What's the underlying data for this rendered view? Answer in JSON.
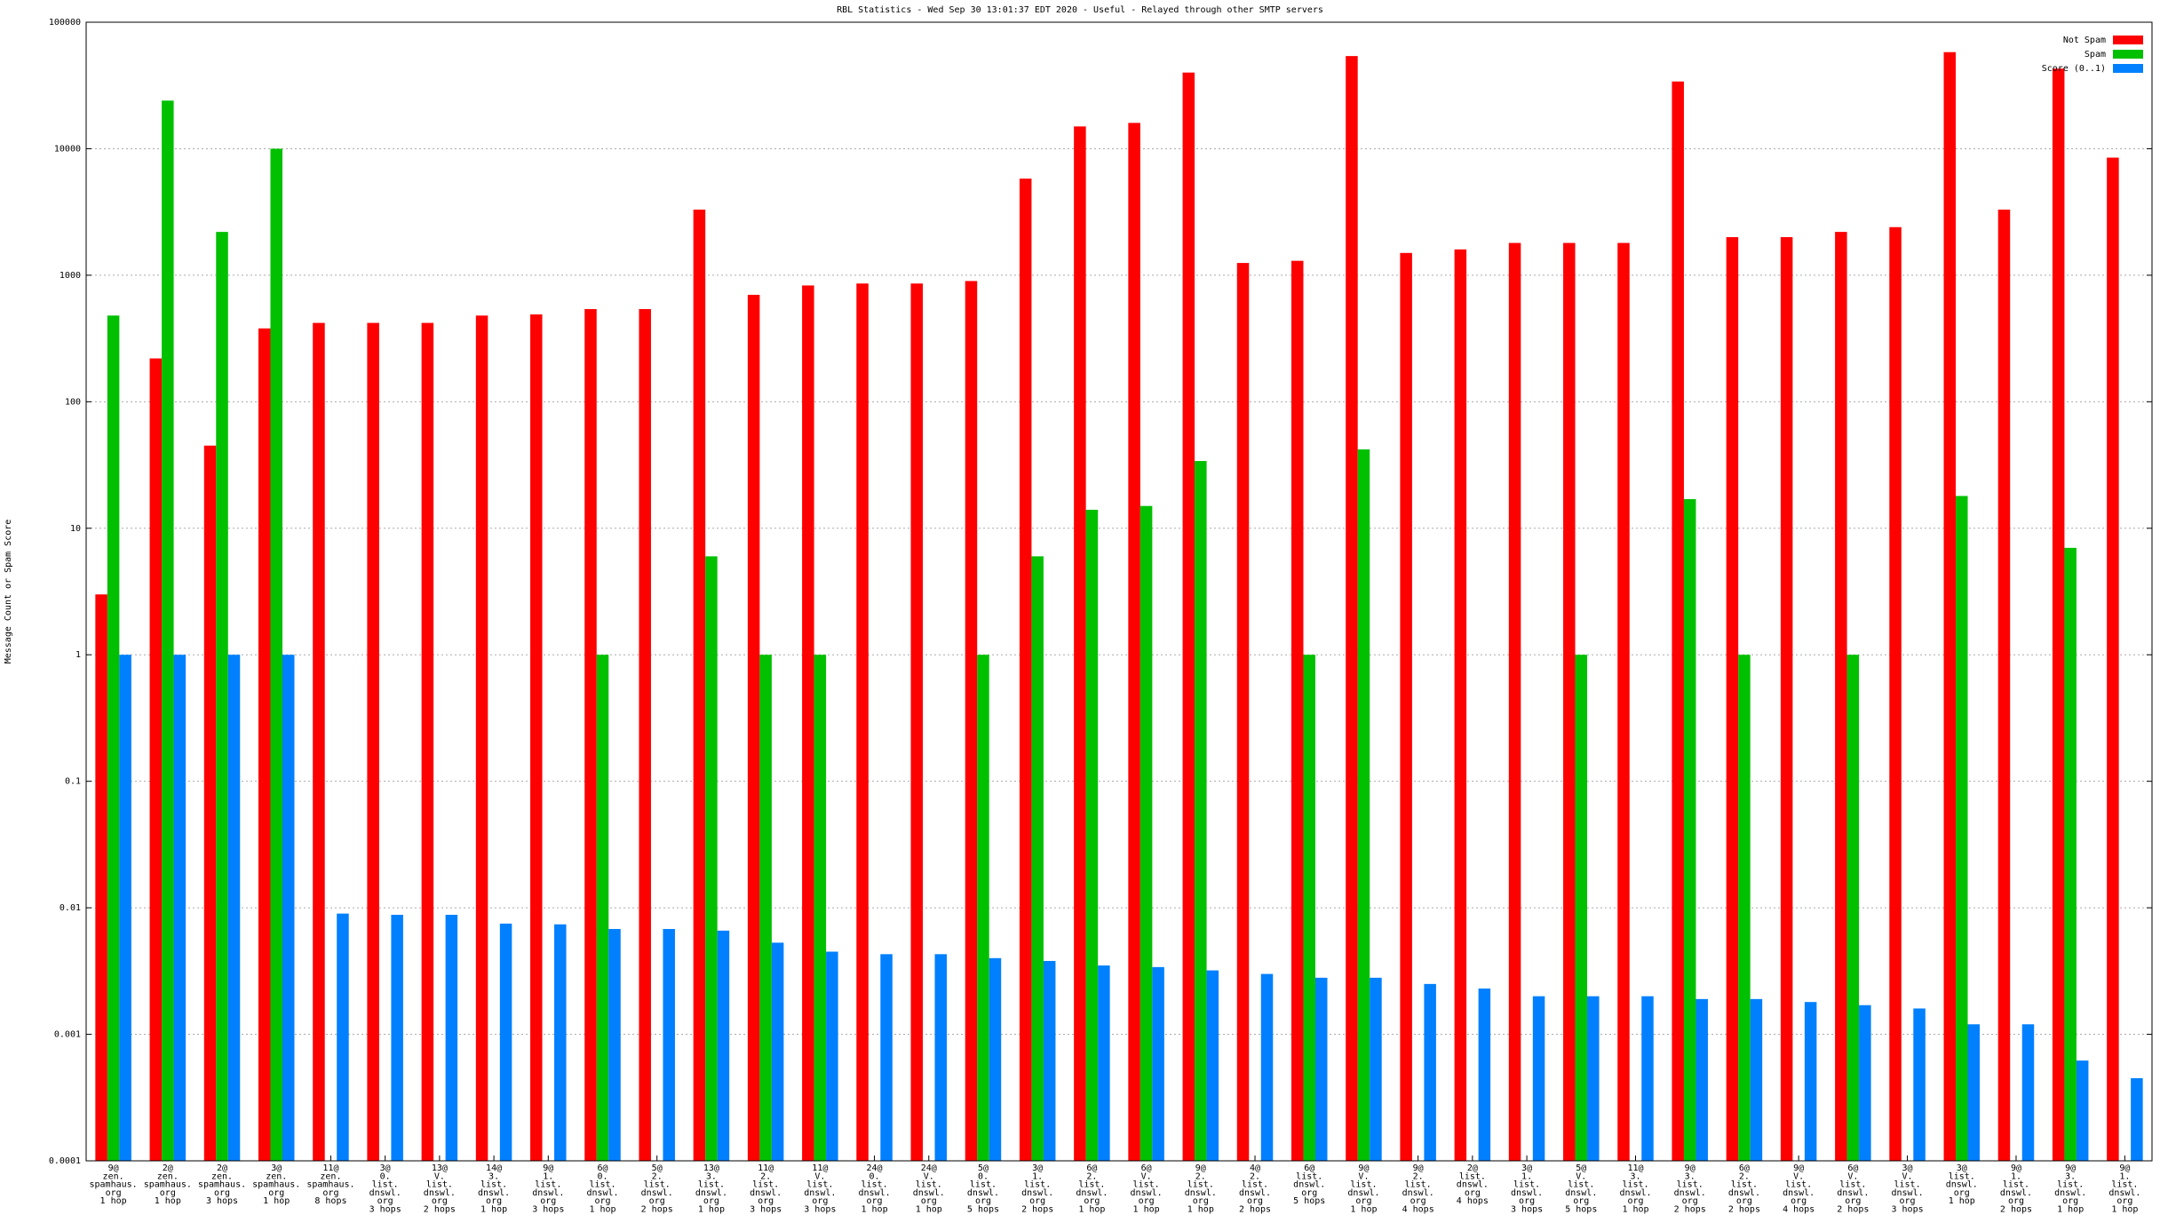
{
  "chart_data": {
    "type": "bar",
    "title": "RBL Statistics - Wed Sep 30 13:01:37 EDT 2020 - Useful - Relayed through other SMTP servers",
    "y_label": "Message Count or Spam Score",
    "log_y": true,
    "grid": true,
    "legend": "upper right",
    "ylim": [
      0.0001,
      100000
    ],
    "yticks": [
      0.0001,
      0.001,
      0.01,
      0.1,
      1,
      10,
      100,
      1000,
      10000,
      100000
    ],
    "categories": [
      [
        "9@",
        "zen.",
        "spamhaus.",
        "org",
        "1 hop"
      ],
      [
        "2@",
        "zen.",
        "spamhaus.",
        "org",
        "1 hop"
      ],
      [
        "2@",
        "zen.",
        "spamhaus.",
        "org",
        "3 hops"
      ],
      [
        "3@",
        "zen.",
        "spamhaus.",
        "org",
        "1 hop"
      ],
      [
        "11@",
        "zen.",
        "spamhaus.",
        "org",
        "8 hops"
      ],
      [
        "3@",
        "0.",
        "list.",
        "dnswl.",
        "org",
        "3 hops"
      ],
      [
        "13@",
        "V.",
        "list.",
        "dnswl.",
        "org",
        "2 hops"
      ],
      [
        "14@",
        "3.",
        "list.",
        "dnswl.",
        "org",
        "1 hop"
      ],
      [
        "9@",
        "1.",
        "list.",
        "dnswl.",
        "org",
        "3 hops"
      ],
      [
        "6@",
        "0.",
        "list.",
        "dnswl.",
        "org",
        "1 hop"
      ],
      [
        "5@",
        "2.",
        "list.",
        "dnswl.",
        "org",
        "2 hops"
      ],
      [
        "13@",
        "3.",
        "list.",
        "dnswl.",
        "org",
        "1 hop"
      ],
      [
        "11@",
        "2.",
        "list.",
        "dnswl.",
        "org",
        "3 hops"
      ],
      [
        "11@",
        "V.",
        "list.",
        "dnswl.",
        "org",
        "3 hops"
      ],
      [
        "24@",
        "0.",
        "list.",
        "dnswl.",
        "org",
        "1 hop"
      ],
      [
        "24@",
        "V.",
        "list.",
        "dnswl.",
        "org",
        "1 hop"
      ],
      [
        "5@",
        "0.",
        "list.",
        "dnswl.",
        "org",
        "5 hops"
      ],
      [
        "3@",
        "1.",
        "list.",
        "dnswl.",
        "org",
        "2 hops"
      ],
      [
        "6@",
        "2.",
        "list.",
        "dnswl.",
        "org",
        "1 hop"
      ],
      [
        "6@",
        "V.",
        "list.",
        "dnswl.",
        "org",
        "1 hop"
      ],
      [
        "9@",
        "2.",
        "list.",
        "dnswl.",
        "org",
        "1 hop"
      ],
      [
        "4@",
        "2.",
        "list.",
        "dnswl.",
        "org",
        "2 hops"
      ],
      [
        "6@",
        "list.",
        "dnswl.",
        "org",
        "5 hops"
      ],
      [
        "9@",
        "V.",
        "list.",
        "dnswl.",
        "org",
        "1 hop"
      ],
      [
        "9@",
        "2.",
        "list.",
        "dnswl.",
        "org",
        "4 hops"
      ],
      [
        "2@",
        "list.",
        "dnswl.",
        "org",
        "4 hops"
      ],
      [
        "3@",
        "1.",
        "list.",
        "dnswl.",
        "org",
        "3 hops"
      ],
      [
        "5@",
        "V.",
        "list.",
        "dnswl.",
        "org",
        "5 hops"
      ],
      [
        "11@",
        "3.",
        "list.",
        "dnswl.",
        "org",
        "1 hop"
      ],
      [
        "9@",
        "3.",
        "list.",
        "dnswl.",
        "org",
        "2 hops"
      ],
      [
        "6@",
        "2.",
        "list.",
        "dnswl.",
        "org",
        "2 hops"
      ],
      [
        "9@",
        "V.",
        "list.",
        "dnswl.",
        "org",
        "4 hops"
      ],
      [
        "6@",
        "V.",
        "list.",
        "dnswl.",
        "org",
        "2 hops"
      ],
      [
        "3@",
        "V.",
        "list.",
        "dnswl.",
        "org",
        "3 hops"
      ],
      [
        "3@",
        "list.",
        "dnswl.",
        "org",
        "1 hop"
      ],
      [
        "9@",
        "1.",
        "list.",
        "dnswl.",
        "org",
        "2 hops"
      ],
      [
        "9@",
        "3.",
        "list.",
        "dnswl.",
        "org",
        "1 hop"
      ],
      [
        "9@",
        "1.",
        "list.",
        "dnswl.",
        "org",
        "1 hop"
      ]
    ],
    "series": [
      {
        "name": "Not Spam",
        "color": "#ff0000",
        "values": [
          3,
          220,
          45,
          380,
          420,
          420,
          420,
          480,
          490,
          540,
          540,
          3300,
          700,
          830,
          860,
          860,
          900,
          5800,
          15000,
          16000,
          40000,
          1250,
          1300,
          54000,
          1500,
          1600,
          1800,
          1800,
          1800,
          34000,
          2000,
          2000,
          2200,
          2400,
          58000,
          3300,
          43000,
          8500
        ]
      },
      {
        "name": "Spam",
        "color": "#00c000",
        "values": [
          480,
          24000,
          2200,
          10000,
          null,
          null,
          null,
          null,
          null,
          1,
          null,
          6,
          1,
          1,
          null,
          null,
          1,
          6,
          14,
          15,
          34,
          null,
          1,
          42,
          null,
          null,
          null,
          1,
          null,
          17,
          1,
          null,
          1,
          null,
          18,
          null,
          7,
          null
        ]
      },
      {
        "name": "Score (0..1)",
        "color": "#0080ff",
        "values": [
          1,
          1,
          1,
          1,
          0.009,
          0.0088,
          0.0088,
          0.0075,
          0.0074,
          0.0068,
          0.0068,
          0.0066,
          0.0053,
          0.0045,
          0.0043,
          0.0043,
          0.004,
          0.0038,
          0.0035,
          0.0034,
          0.0032,
          0.003,
          0.0028,
          0.0028,
          0.0025,
          0.0023,
          0.002,
          0.002,
          0.002,
          0.0019,
          0.0019,
          0.0018,
          0.0017,
          0.0016,
          0.0012,
          0.0012,
          0.00062,
          0.00045
        ]
      }
    ]
  }
}
